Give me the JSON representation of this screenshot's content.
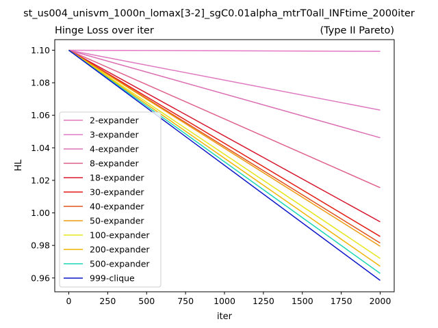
{
  "chart_data": {
    "type": "line",
    "suptitle": "st_us004_unisvm_1000n_lomax[3-2]_sgC0.01alpha_mtrT0all_INFtime_2000iter",
    "title": "Hinge Loss over iter",
    "title_right": "(Type II Pareto)",
    "xlabel": "iter",
    "ylabel": "HL",
    "xlim": [
      -90,
      2090
    ],
    "ylim": [
      0.9515,
      1.1065
    ],
    "xticks": [
      0,
      250,
      500,
      750,
      1000,
      1250,
      1500,
      1750,
      2000
    ],
    "yticks": [
      0.96,
      0.98,
      1.0,
      1.02,
      1.04,
      1.06,
      1.08,
      1.1
    ],
    "ytick_labels": [
      "0.96",
      "0.98",
      "1.00",
      "1.02",
      "1.04",
      "1.06",
      "1.08",
      "1.10"
    ],
    "grid": false,
    "legend_position": "lower-left",
    "series": [
      {
        "name": "2-expander",
        "color": "#e377c2",
        "x": [
          0,
          2000
        ],
        "y": [
          1.1,
          1.0993
        ]
      },
      {
        "name": "3-expander",
        "color": "#e07ac0",
        "x": [
          0,
          2000
        ],
        "y": [
          1.1,
          1.0632
        ]
      },
      {
        "name": "4-expander",
        "color": "#dc70b4",
        "x": [
          0,
          2000
        ],
        "y": [
          1.1,
          1.0462
        ]
      },
      {
        "name": "8-expander",
        "color": "#e0608a",
        "x": [
          0,
          2000
        ],
        "y": [
          1.1,
          1.0155
        ]
      },
      {
        "name": "18-expander",
        "color": "#d6142c",
        "x": [
          0,
          2000
        ],
        "y": [
          1.1,
          0.9945
        ]
      },
      {
        "name": "30-expander",
        "color": "#e31a12",
        "x": [
          0,
          2000
        ],
        "y": [
          1.1,
          0.9855
        ]
      },
      {
        "name": "40-expander",
        "color": "#e0501a",
        "x": [
          0,
          2000
        ],
        "y": [
          1.1,
          0.9815
        ]
      },
      {
        "name": "50-expander",
        "color": "#ee9a0e",
        "x": [
          0,
          2000
        ],
        "y": [
          1.1,
          0.9795
        ]
      },
      {
        "name": "100-expander",
        "color": "#e6e61a",
        "x": [
          0,
          2000
        ],
        "y": [
          1.1,
          0.972
        ]
      },
      {
        "name": "200-expander",
        "color": "#f0b400",
        "x": [
          0,
          2000
        ],
        "y": [
          1.1,
          0.9672
        ]
      },
      {
        "name": "500-expander",
        "color": "#1ad6b4",
        "x": [
          0,
          2000
        ],
        "y": [
          1.1,
          0.9628
        ]
      },
      {
        "name": "999-clique",
        "color": "#0a14c8",
        "x": [
          0,
          2000
        ],
        "y": [
          1.1,
          0.9585
        ]
      }
    ]
  }
}
